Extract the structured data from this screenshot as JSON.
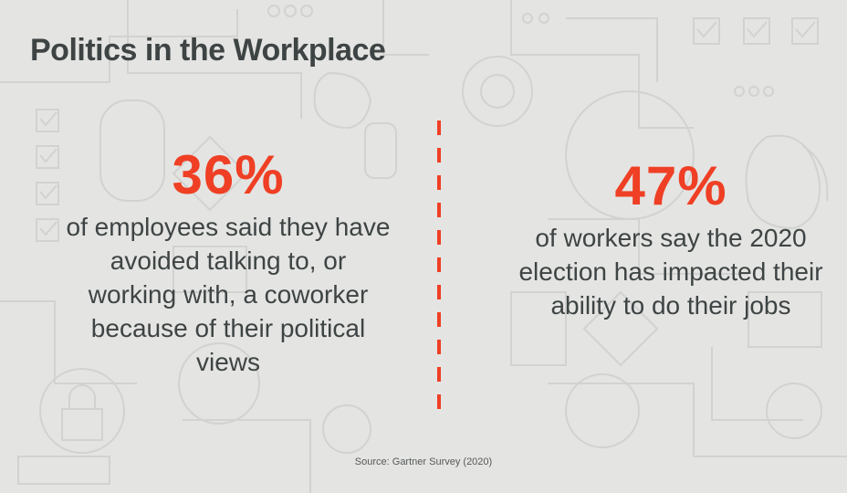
{
  "title": "Politics in the Workplace",
  "stats": [
    {
      "value": "36%",
      "text": "of employees said they have avoided talking to, or working with, a coworker because of their political views"
    },
    {
      "value": "47%",
      "text": "of workers say the 2020 election has impacted their ability to do their jobs"
    }
  ],
  "source": "Source: Gartner Survey (2020)",
  "colors": {
    "background": "#e4e4e2",
    "accent": "#ef3f24",
    "text": "#3e4444"
  }
}
